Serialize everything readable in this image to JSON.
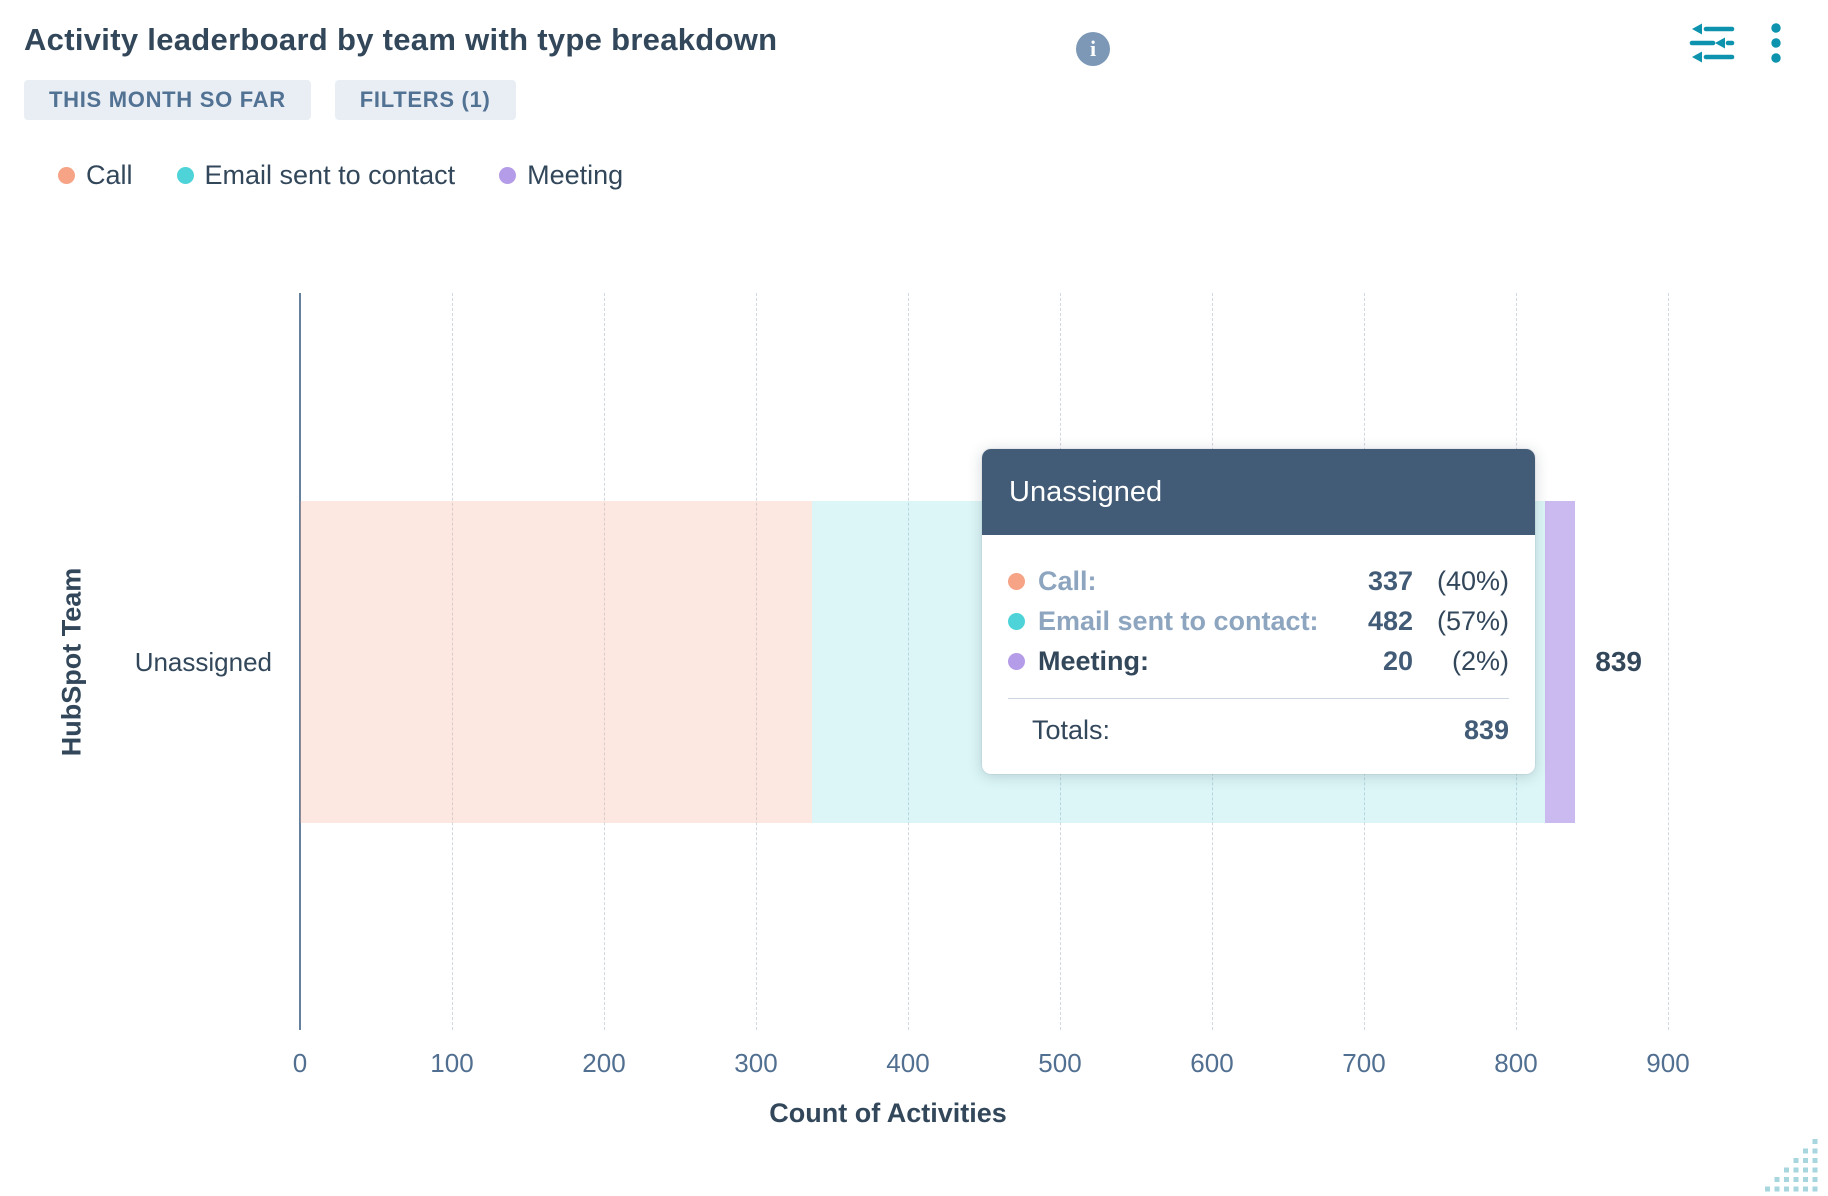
{
  "header": {
    "title": "Activity leaderboard by team with type breakdown",
    "info_glyph": "i"
  },
  "badges": [
    {
      "label": "THIS MONTH SO FAR"
    },
    {
      "label": "FILTERS (1)"
    }
  ],
  "chart_data": {
    "type": "bar",
    "orientation": "horizontal",
    "title": "Activity leaderboard by team with type breakdown",
    "xlabel": "Count of Activities",
    "ylabel": "HubSpot Team",
    "categories": [
      "Unassigned"
    ],
    "series": [
      {
        "name": "Call",
        "values": [
          337
        ],
        "percent": [
          "40%"
        ],
        "color": "#f6a386",
        "fill": "rgba(246,163,134,0.25)"
      },
      {
        "name": "Email sent to contact",
        "values": [
          482
        ],
        "percent": [
          "57%"
        ],
        "color": "#4ed4d8",
        "fill": "rgba(78,212,216,0.20)"
      },
      {
        "name": "Meeting",
        "values": [
          20
        ],
        "percent": [
          "2%"
        ],
        "color": "#b49ce8",
        "fill": "rgba(180,156,232,0.70)"
      }
    ],
    "totals": [
      839
    ],
    "xlim": [
      0,
      900
    ],
    "xticks": [
      0,
      100,
      200,
      300,
      400,
      500,
      600,
      700,
      800,
      900
    ],
    "grid": "vertical-dashed",
    "legend_position": "top",
    "bar_total_labels": [
      "839"
    ]
  },
  "tooltip": {
    "title": "Unassigned",
    "rows": [
      {
        "label": "Call:",
        "value": "337",
        "percent": "(40%)",
        "dimmed": true
      },
      {
        "label": "Email sent to contact:",
        "value": "482",
        "percent": "(57%)",
        "dimmed": true
      },
      {
        "label": "Meeting:",
        "value": "20",
        "percent": "(2%)",
        "dimmed": false
      }
    ],
    "totals_label": "Totals:",
    "totals_value": "839"
  },
  "colors": {
    "text_dark": "#33475b",
    "text_slate": "#516f90",
    "accent_teal": "#0d93ad",
    "axis": "#65819e",
    "gridline": "#d2d8e0",
    "badge_bg": "#e9eef5",
    "badge_text": "#527294",
    "info_icon_bg": "#7c98b6",
    "tooltip_header_bg": "#425b76",
    "resize_grip": "#a7d6de"
  }
}
